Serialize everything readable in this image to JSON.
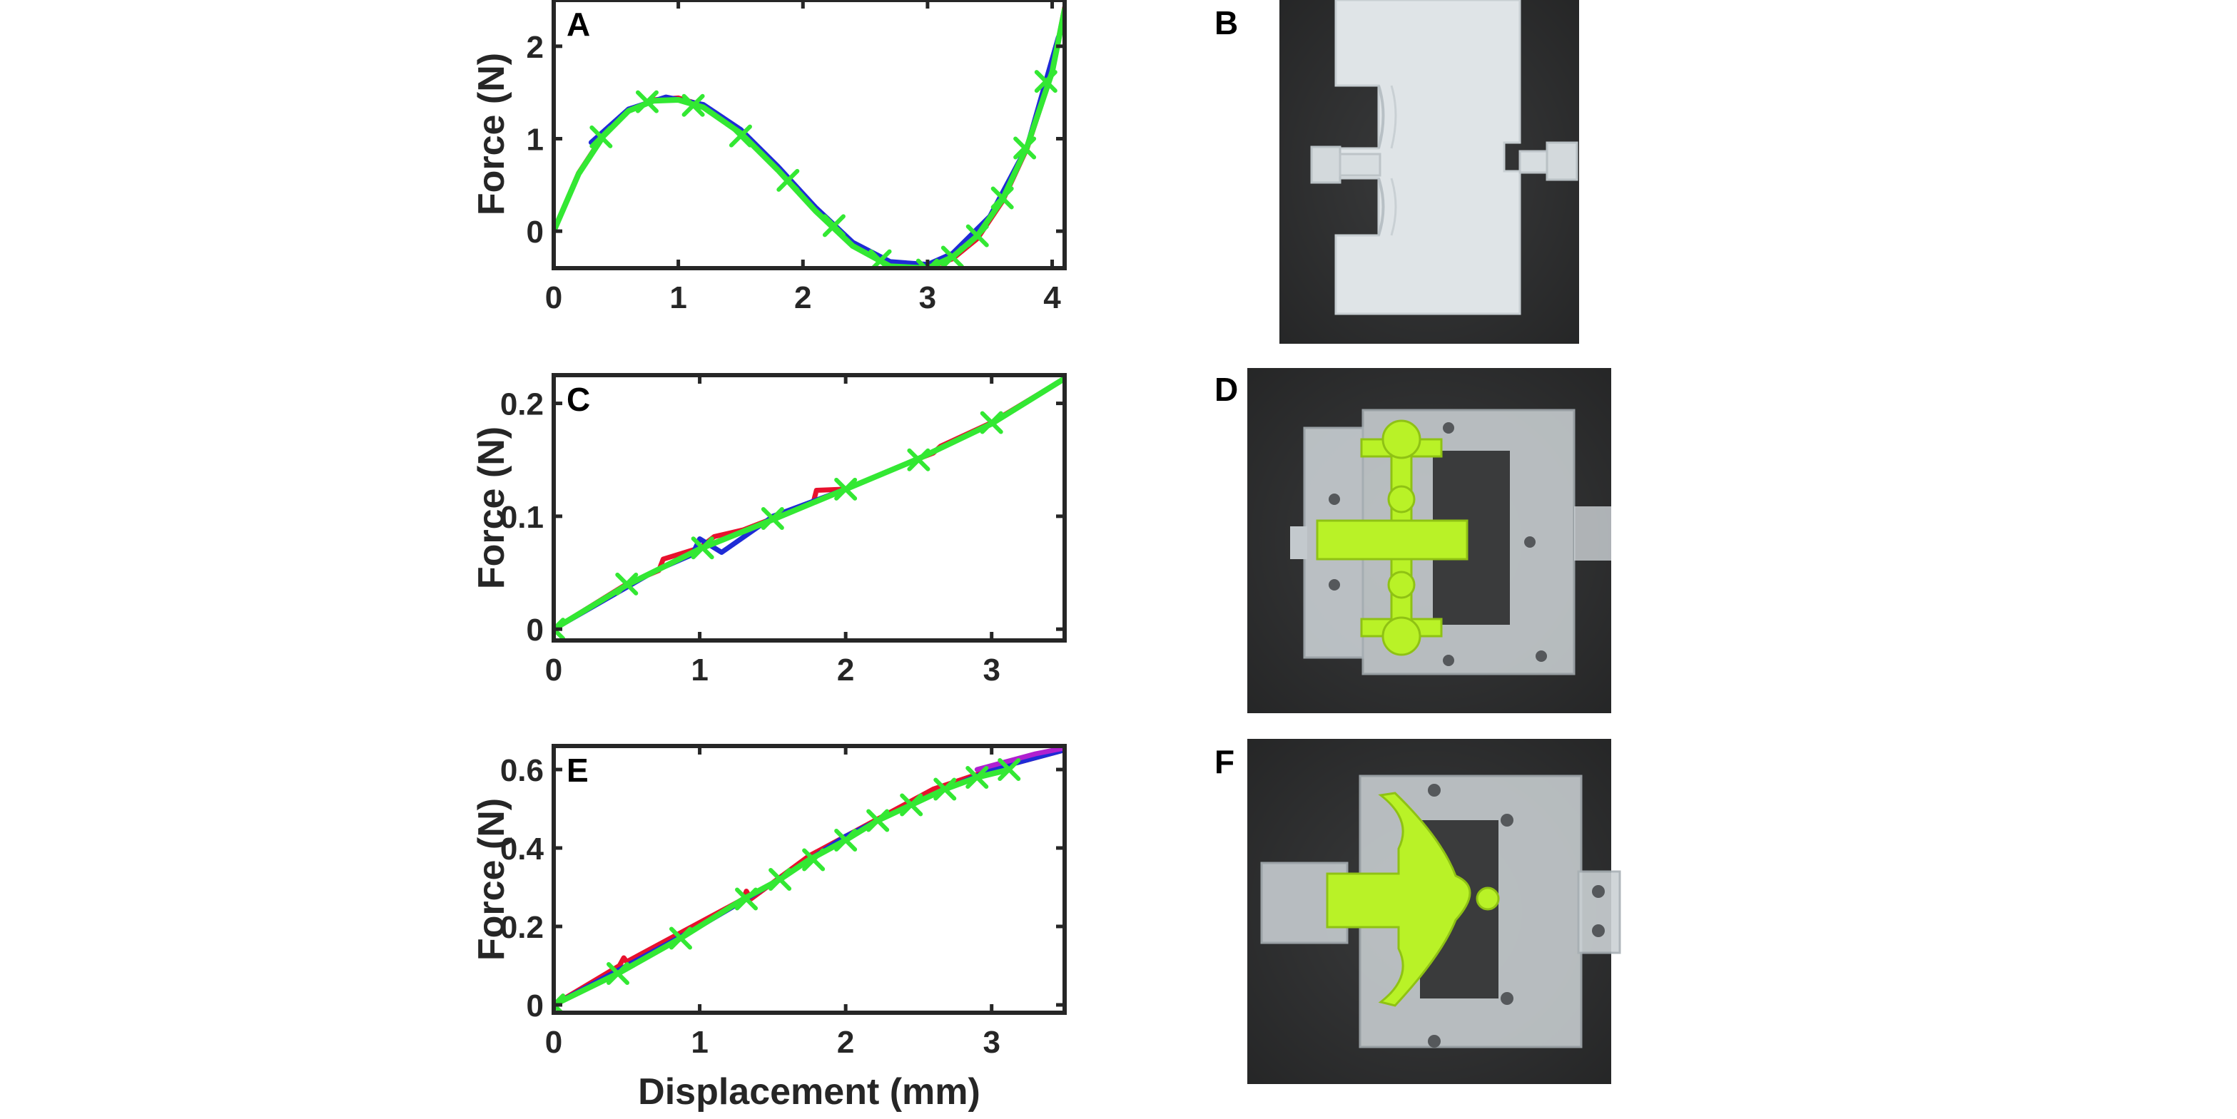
{
  "charts": [
    {
      "panel": "A",
      "type": "line",
      "ylabel": "Force (N)",
      "xlabel": "",
      "xlim": [
        0,
        4.1
      ],
      "ylim": [
        -0.4,
        2.5
      ],
      "xticks": [
        0,
        1,
        2,
        3,
        4
      ],
      "yticks": [
        0,
        1,
        2
      ],
      "series": [
        {
          "color": "#e8112d",
          "x": [
            0,
            0.2,
            0.4,
            0.6,
            0.8,
            1.0,
            1.2,
            1.5,
            1.8,
            2.1,
            2.4,
            2.7,
            2.95,
            3.2,
            3.4,
            3.6,
            3.8,
            4.0,
            4.1
          ],
          "y": [
            0,
            0.63,
            1.04,
            1.3,
            1.42,
            1.44,
            1.36,
            1.08,
            0.68,
            0.24,
            -0.14,
            -0.36,
            -0.42,
            -0.3,
            -0.08,
            0.32,
            0.9,
            1.72,
            2.42
          ]
        },
        {
          "color": "#1f2bd6",
          "x": [
            0.3,
            0.6,
            0.9,
            1.2,
            1.5,
            1.8,
            2.1,
            2.4,
            2.7,
            3.0,
            3.2,
            3.5,
            3.8,
            4.05
          ],
          "y": [
            0.96,
            1.32,
            1.45,
            1.37,
            1.1,
            0.7,
            0.26,
            -0.12,
            -0.33,
            -0.36,
            -0.24,
            0.16,
            0.92,
            2.1
          ]
        },
        {
          "color": "#33e833",
          "x": [
            0,
            0.2,
            0.4,
            0.6,
            0.8,
            1.0,
            1.2,
            1.5,
            1.8,
            2.1,
            2.4,
            2.7,
            3.0,
            3.2,
            3.4,
            3.6,
            3.8,
            4.0,
            4.1
          ],
          "y": [
            0,
            0.62,
            1.03,
            1.3,
            1.41,
            1.42,
            1.34,
            1.06,
            0.66,
            0.22,
            -0.16,
            -0.38,
            -0.4,
            -0.28,
            -0.05,
            0.34,
            0.92,
            1.72,
            2.4
          ]
        }
      ],
      "markers": {
        "color": "#33e833",
        "x": [
          0.38,
          0.75,
          1.12,
          1.5,
          1.88,
          2.25,
          2.62,
          3.0,
          3.2,
          3.4,
          3.6,
          3.78,
          3.95
        ],
        "y": [
          1.02,
          1.4,
          1.36,
          1.03,
          0.55,
          0.06,
          -0.32,
          -0.42,
          -0.28,
          -0.05,
          0.36,
          0.9,
          1.62
        ]
      }
    },
    {
      "panel": "C",
      "type": "line",
      "ylabel": "Force (N)",
      "xlabel": "",
      "xlim": [
        0,
        3.5
      ],
      "ylim": [
        -0.01,
        0.225
      ],
      "xticks": [
        0,
        1,
        2,
        3
      ],
      "yticks": [
        0,
        0.1,
        0.2
      ],
      "series": [
        {
          "color": "#e8112d",
          "x": [
            0,
            0.5,
            0.72,
            0.75,
            1.0,
            1.1,
            1.3,
            1.5,
            1.78,
            1.8,
            2.0,
            2.5,
            2.6,
            2.65,
            3.0,
            3.5
          ],
          "y": [
            0,
            0.04,
            0.052,
            0.062,
            0.072,
            0.082,
            0.088,
            0.098,
            0.113,
            0.123,
            0.124,
            0.151,
            0.156,
            0.162,
            0.183,
            0.222
          ]
        },
        {
          "color": "#1f2bd6",
          "x": [
            0,
            0.7,
            0.95,
            1.0,
            1.15,
            1.45,
            1.5,
            2.0,
            2.5,
            3.0,
            3.5
          ],
          "y": [
            0,
            0.052,
            0.066,
            0.08,
            0.068,
            0.095,
            0.1,
            0.124,
            0.151,
            0.182,
            0.222
          ]
        },
        {
          "color": "#33e833",
          "x": [
            0,
            0.5,
            1.0,
            1.5,
            2.0,
            2.5,
            3.0,
            3.5
          ],
          "y": [
            0,
            0.039,
            0.071,
            0.097,
            0.124,
            0.151,
            0.182,
            0.222
          ]
        }
      ],
      "markers": {
        "color": "#33e833",
        "x": [
          0,
          0.5,
          1.02,
          1.5,
          2.0,
          2.5,
          3.0
        ],
        "y": [
          0,
          0.04,
          0.072,
          0.098,
          0.124,
          0.15,
          0.183
        ]
      }
    },
    {
      "panel": "E",
      "type": "line",
      "ylabel": "Force (N)",
      "xlabel": "Displacement (mm)",
      "xlim": [
        0,
        3.5
      ],
      "ylim": [
        -0.02,
        0.66
      ],
      "xticks": [
        0,
        1,
        2,
        3
      ],
      "yticks": [
        0,
        0.2,
        0.4,
        0.6
      ],
      "series": [
        {
          "color": "#e8112d",
          "x": [
            0,
            0.45,
            0.48,
            0.5,
            0.9,
            1.3,
            1.32,
            1.35,
            1.75,
            2.2,
            2.6,
            3.0,
            3.5
          ],
          "y": [
            0,
            0.1,
            0.12,
            0.11,
            0.19,
            0.27,
            0.29,
            0.27,
            0.38,
            0.47,
            0.55,
            0.6,
            0.65
          ]
        },
        {
          "color": "#1f2bd6",
          "x": [
            0,
            0.5,
            1.0,
            1.5,
            2.0,
            2.5,
            3.0,
            3.5
          ],
          "y": [
            0,
            0.1,
            0.2,
            0.31,
            0.43,
            0.52,
            0.6,
            0.65
          ]
        },
        {
          "color": "#b020d0",
          "x": [
            2.9,
            3.1,
            3.3,
            3.5
          ],
          "y": [
            0.6,
            0.62,
            0.64,
            0.655
          ]
        },
        {
          "color": "#33e833",
          "x": [
            0,
            0.44,
            0.87,
            1.3,
            1.55,
            1.75,
            2.0,
            2.22,
            2.45,
            2.68,
            2.9,
            3.12
          ],
          "y": [
            0,
            0.08,
            0.17,
            0.27,
            0.32,
            0.37,
            0.42,
            0.47,
            0.51,
            0.55,
            0.58,
            0.6
          ]
        }
      ],
      "markers": {
        "color": "#33e833",
        "x": [
          0,
          0.44,
          0.87,
          1.32,
          1.55,
          1.78,
          2.0,
          2.22,
          2.45,
          2.68,
          2.9,
          3.12
        ],
        "y": [
          0,
          0.08,
          0.17,
          0.27,
          0.32,
          0.37,
          0.42,
          0.47,
          0.51,
          0.55,
          0.58,
          0.6
        ]
      }
    }
  ],
  "photos": [
    {
      "panel": "B"
    },
    {
      "panel": "D"
    },
    {
      "panel": "F"
    }
  ],
  "colors": {
    "axis": "#262626",
    "photo_bg": "#3a3b3c",
    "clear_plastic": "#d8dde0",
    "green_print": "#b9f227"
  }
}
